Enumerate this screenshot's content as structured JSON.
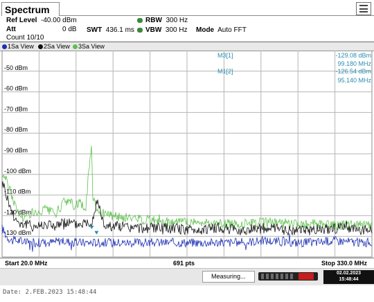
{
  "window": {
    "tab_title": "Spectrum"
  },
  "settings": {
    "ref_level_label": "Ref Level",
    "ref_level_value": "-40.00 dBm",
    "att_label": "Att",
    "att_value": "0 dB",
    "count_text": "Count 10/10",
    "swt_label": "SWT",
    "swt_value": "436.1 ms",
    "rbw_label": "RBW",
    "rbw_value": "300 Hz",
    "vbw_label": "VBW",
    "vbw_value": "300 Hz",
    "mode_label": "Mode",
    "mode_value": "Auto FFT"
  },
  "view_bar": {
    "items": [
      {
        "label": "1Sa View",
        "color": "#1c2fb3"
      },
      {
        "label": "2Sa View",
        "color": "#111111"
      },
      {
        "label": "3Sa View",
        "color": "#5fc04f"
      }
    ]
  },
  "markers": [
    {
      "name": "M3[1]",
      "level": "-129.08 dBm",
      "freq": "99.180 MHz"
    },
    {
      "name": "M1[2]",
      "level": "-126.54 dBm",
      "freq": "95.140 MHz"
    }
  ],
  "plot_marker_labels": {
    "m3": "M3",
    "m1": "M1"
  },
  "footer": {
    "start": "Start 20.0 MHz",
    "points": "691 pts",
    "stop": "Stop 330.0 MHz"
  },
  "status": {
    "measuring": "Measuring...",
    "date": "02.02.2023",
    "time": "15:48:44"
  },
  "bottom_caption": "Date: 2.FEB.2023  15:48:44",
  "colors": {
    "trace1": "#1c2fb3",
    "trace2": "#111111",
    "trace3": "#5fc04f",
    "marker": "#2a8db0",
    "grid": "#b4b4b4"
  },
  "chart_data": {
    "type": "line",
    "x_unit": "MHz",
    "y_unit": "dBm",
    "xlim": [
      20.0,
      330.0
    ],
    "ylim": [
      -140,
      -40
    ],
    "y_ticks": [
      "-50 dBm",
      "-60 dBm",
      "-70 dBm",
      "-80 dBm",
      "-90 dBm",
      "-100 dBm",
      "-110 dBm",
      "-120 dBm",
      "-130 dBm"
    ],
    "y_tick_values": [
      -50,
      -60,
      -70,
      -80,
      -90,
      -100,
      -110,
      -120,
      -130
    ],
    "grid": true,
    "series": [
      {
        "name": "1Sa View",
        "x": [
          20,
          22,
          24,
          26,
          28,
          30,
          35,
          40,
          50,
          60,
          70,
          80,
          90,
          100,
          110,
          120,
          140,
          160,
          180,
          200,
          220,
          240,
          260,
          280,
          300,
          320,
          330
        ],
        "y": [
          -126,
          -128,
          -130,
          -131,
          -132,
          -132,
          -132,
          -133,
          -133,
          -133,
          -132,
          -133,
          -133,
          -133,
          -133,
          -133,
          -133,
          -133,
          -133,
          -133,
          -133,
          -132,
          -133,
          -133,
          -132,
          -133,
          -133
        ]
      },
      {
        "name": "2Sa View",
        "x": [
          20,
          22,
          24,
          26,
          28,
          30,
          32,
          34,
          36,
          38,
          40,
          45,
          50,
          55,
          60,
          65,
          70,
          75,
          80,
          85,
          90,
          95,
          100,
          105,
          110,
          120,
          130,
          140,
          160,
          180,
          200,
          220,
          240,
          260,
          280,
          300,
          320,
          330
        ],
        "y": [
          -104,
          -106,
          -111,
          -114,
          -118,
          -120,
          -122,
          -123,
          -124,
          -124,
          -124,
          -125,
          -125,
          -124,
          -124,
          -125,
          -124,
          -123,
          -124,
          -124,
          -123,
          -123,
          -112,
          -124,
          -125,
          -125,
          -126,
          -126,
          -126,
          -127,
          -126,
          -127,
          -126,
          -127,
          -127,
          -126,
          -127,
          -127
        ]
      },
      {
        "name": "3Sa View",
        "x": [
          20,
          22,
          24,
          26,
          28,
          30,
          32,
          34,
          36,
          38,
          40,
          45,
          50,
          55,
          60,
          65,
          70,
          75,
          80,
          85,
          90,
          94,
          95,
          96,
          100,
          105,
          110,
          120,
          130,
          140,
          160,
          180,
          200,
          220,
          240,
          260,
          280,
          300,
          320,
          330
        ],
        "y": [
          -101,
          -100,
          -104,
          -106,
          -110,
          -113,
          -117,
          -119,
          -120,
          -121,
          -121,
          -118,
          -120,
          -117,
          -118,
          -119,
          -115,
          -112,
          -115,
          -114,
          -117,
          -90,
          -88,
          -110,
          -117,
          -119,
          -120,
          -121,
          -121,
          -122,
          -123,
          -123,
          -124,
          -124,
          -123,
          -124,
          -124,
          -125,
          -124,
          -124
        ]
      }
    ],
    "markers": [
      {
        "name": "M3",
        "x": 99.18,
        "y": -129.08
      },
      {
        "name": "M1",
        "x": 95.14,
        "y": -126.54
      }
    ]
  }
}
